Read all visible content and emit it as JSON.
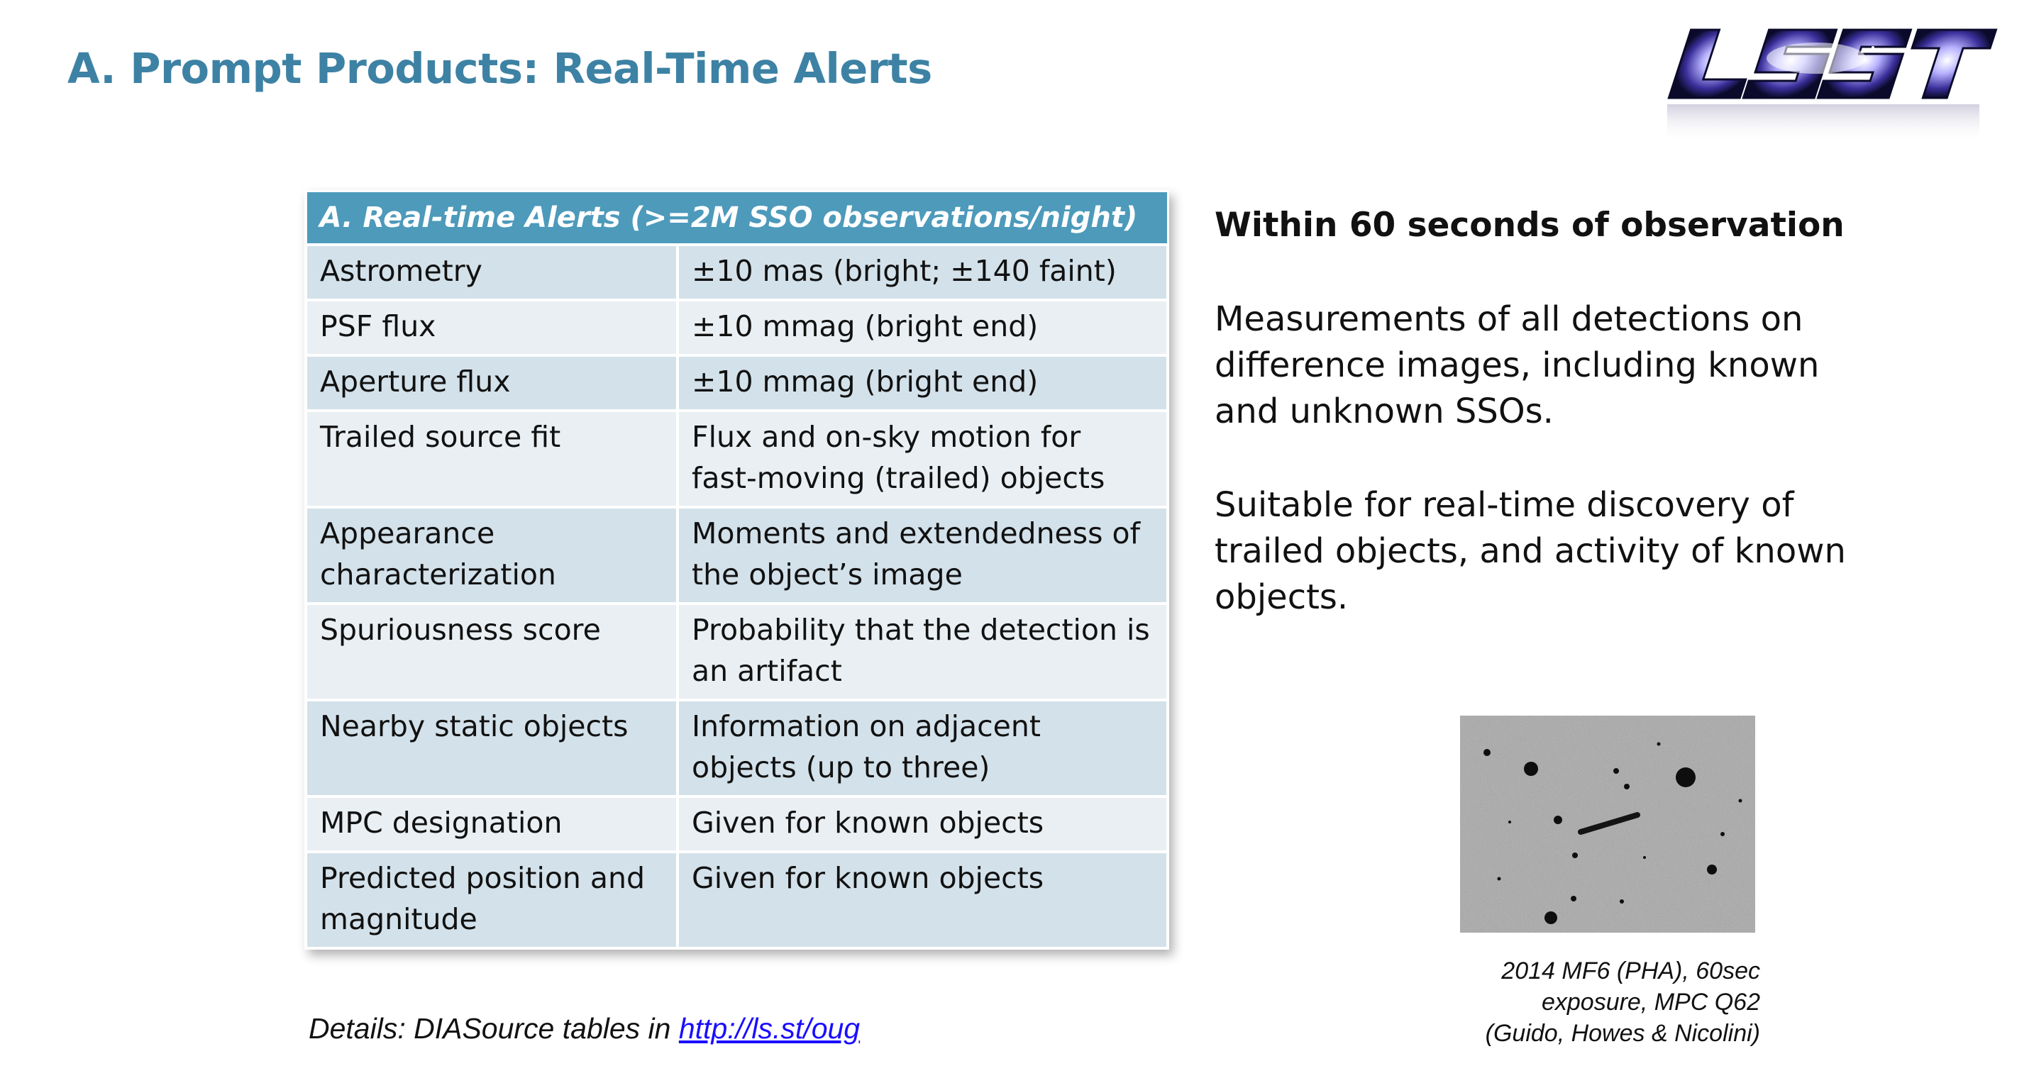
{
  "slide": {
    "title": "A. Prompt Products: Real-Time Alerts",
    "logo_text": "LSST"
  },
  "table": {
    "header": "A. Real-time Alerts (>=2M SSO observations/night)",
    "rows": [
      {
        "field": "Astrometry",
        "value": "±10 mas (bright; ±140 faint)"
      },
      {
        "field": "PSF flux",
        "value": "±10 mmag (bright end)"
      },
      {
        "field": "Aperture flux",
        "value": "±10 mmag (bright end)"
      },
      {
        "field": "Trailed source fit",
        "value": "Flux and on-sky motion for fast-moving (trailed) objects"
      },
      {
        "field": "Appearance characterization",
        "value": "Moments and extendedness of the object’s image"
      },
      {
        "field": "Spuriousness score",
        "value": "Probability that the detection is an artifact"
      },
      {
        "field": "Nearby static objects",
        "value": "Information on adjacent objects (up to three)"
      },
      {
        "field": "MPC designation",
        "value": "Given for known objects"
      },
      {
        "field": "Predicted position and magnitude",
        "value": "Given for known objects"
      }
    ]
  },
  "side": {
    "heading": "Within 60 seconds of observation",
    "p1": "Measurements of all detections on difference images, including known and unknown SSOs.",
    "p2": "Suitable for real-time discovery of trailed objects, and activity of known objects."
  },
  "image": {
    "caption_lines": [
      "2014 MF6 (PHA), 60sec",
      "exposure, MPC Q62",
      "(Guido, Howes & Nicolini)"
    ]
  },
  "details": {
    "prefix": "Details: DIASource tables in ",
    "link_text": "http://ls.st/oug"
  },
  "colors": {
    "title": "#3d82a4",
    "table_header": "#4d9abb",
    "row_dark": "#d3e1ea",
    "row_light": "#e9eff3",
    "link": "#1a0dff"
  }
}
